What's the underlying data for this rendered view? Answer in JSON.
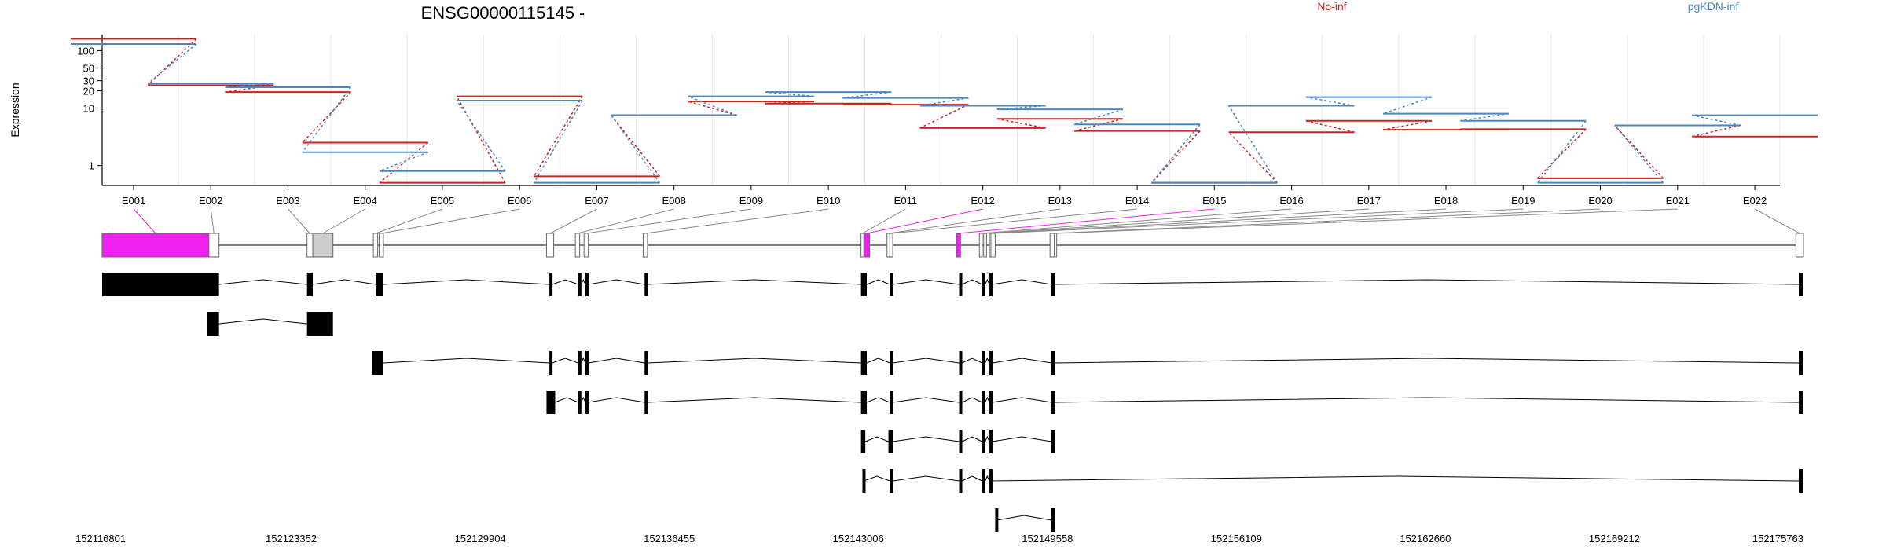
{
  "title": "ENSG00000115145 -",
  "legend": [
    {
      "name": "No-inf",
      "color": "#cc2222"
    },
    {
      "name": "pgKDN-inf",
      "color": "#4a86c0"
    }
  ],
  "colors": {
    "highlight": "#ee22ee",
    "exon_fill": "#cccccc",
    "transcript": "#000000",
    "grid": "#e8e8e8"
  },
  "chart_data": {
    "type": "line",
    "ylabel": "Expression",
    "yscale": "log",
    "ylim": [
      0.45,
      190
    ],
    "yticks": [
      1,
      10,
      20,
      30,
      50,
      100
    ],
    "yticklabels": [
      "1",
      "10",
      "20",
      "30",
      "50",
      "100"
    ],
    "categories": [
      "E001",
      "E002",
      "E003",
      "E004",
      "E005",
      "E006",
      "E007",
      "E008",
      "E009",
      "E010",
      "E011",
      "E012",
      "E013",
      "E014",
      "E015",
      "E016",
      "E017",
      "E018",
      "E019",
      "E020",
      "E021",
      "E022"
    ],
    "series": [
      {
        "name": "No-inf",
        "values": [
          160,
          25,
          19,
          2.5,
          0.5,
          16,
          0.65,
          7.5,
          13,
          12,
          11.5,
          4.5,
          6.5,
          4,
          0.5,
          3.8,
          6,
          4.2,
          4.3,
          0.6,
          5,
          3.2
        ]
      },
      {
        "name": "pgKDN-inf",
        "values": [
          130,
          27,
          23,
          1.7,
          0.8,
          13.5,
          0.5,
          7.5,
          16,
          19,
          15,
          11,
          9.5,
          5.2,
          0.5,
          11,
          15.5,
          8,
          6,
          0.5,
          5,
          7.5
        ]
      }
    ]
  },
  "genome": {
    "start": 152116801,
    "end": 152175763,
    "ticks": [
      "152116801",
      "152123352",
      "152129904",
      "152136455",
      "152143006",
      "152149558",
      "152156109",
      "152162660",
      "152169212",
      "152175763"
    ],
    "exons": [
      {
        "id": "E001",
        "start": 152116801,
        "end": 152120500
      },
      {
        "id": "E002",
        "start": 152120500,
        "end": 152120850
      },
      {
        "id": "E003",
        "start": 152123900,
        "end": 152124100
      },
      {
        "id": "E004",
        "start": 152124100,
        "end": 152124800
      },
      {
        "id": "E005",
        "start": 152126200,
        "end": 152126350
      },
      {
        "id": "E006",
        "start": 152126400,
        "end": 152126550
      },
      {
        "id": "E007",
        "start": 152132200,
        "end": 152132450
      },
      {
        "id": "E008",
        "start": 152133200,
        "end": 152133350
      },
      {
        "id": "E009",
        "start": 152133500,
        "end": 152133650
      },
      {
        "id": "E010",
        "start": 152135550,
        "end": 152135700
      },
      {
        "id": "E011",
        "start": 152143100,
        "end": 152143200
      },
      {
        "id": "E012",
        "start": 152143200,
        "end": 152143400
      },
      {
        "id": "E013",
        "start": 152144000,
        "end": 152144100
      },
      {
        "id": "E014",
        "start": 152144100,
        "end": 152144200
      },
      {
        "id": "E015",
        "start": 152146400,
        "end": 152146550
      },
      {
        "id": "E016",
        "start": 152147200,
        "end": 152147300
      },
      {
        "id": "E017",
        "start": 152147350,
        "end": 152147450
      },
      {
        "id": "E018",
        "start": 152147550,
        "end": 152147600
      },
      {
        "id": "E019",
        "start": 152147600,
        "end": 152147750
      },
      {
        "id": "E020",
        "start": 152149650,
        "end": 152149800
      },
      {
        "id": "E021",
        "start": 152149800,
        "end": 152149850
      },
      {
        "id": "E022",
        "start": 152175500,
        "end": 152175763
      }
    ],
    "highlighted": [
      "E001",
      "E012",
      "E015"
    ],
    "transcripts": [
      {
        "exons": [
          [
            152116801,
            152120850
          ],
          [
            152123900,
            152124100
          ],
          [
            152126300,
            152126550
          ],
          [
            152132300,
            152132400
          ],
          [
            152133300,
            152133400
          ],
          [
            152133550,
            152133650
          ],
          [
            152135600,
            152135700
          ],
          [
            152143100,
            152143300
          ],
          [
            152144100,
            152144200
          ],
          [
            152146500,
            152146600
          ],
          [
            152147300,
            152147400
          ],
          [
            152147550,
            152147650
          ],
          [
            152149700,
            152149800
          ],
          [
            152175600,
            152175763
          ]
        ]
      },
      {
        "exons": [
          [
            152120450,
            152120850
          ],
          [
            152123900,
            152124800
          ]
        ]
      },
      {
        "exons": [
          [
            152126150,
            152126550
          ],
          [
            152132300,
            152132400
          ],
          [
            152133300,
            152133400
          ],
          [
            152133550,
            152133650
          ],
          [
            152135600,
            152135700
          ],
          [
            152143100,
            152143300
          ],
          [
            152144100,
            152144200
          ],
          [
            152146500,
            152146600
          ],
          [
            152147300,
            152147400
          ],
          [
            152147550,
            152147650
          ],
          [
            152149700,
            152149800
          ],
          [
            152175600,
            152175763
          ]
        ]
      },
      {
        "exons": [
          [
            152132200,
            152132500
          ],
          [
            152133300,
            152133400
          ],
          [
            152133550,
            152133650
          ],
          [
            152135600,
            152135700
          ],
          [
            152143100,
            152143300
          ],
          [
            152144100,
            152144200
          ],
          [
            152146500,
            152146600
          ],
          [
            152147300,
            152147400
          ],
          [
            152147550,
            152147650
          ],
          [
            152149700,
            152149800
          ],
          [
            152175600,
            152175763
          ]
        ]
      },
      {
        "exons": [
          [
            152143100,
            152143250
          ],
          [
            152144050,
            152144200
          ],
          [
            152146500,
            152146600
          ],
          [
            152147300,
            152147400
          ],
          [
            152147550,
            152147650
          ],
          [
            152149700,
            152149800
          ]
        ]
      },
      {
        "exons": [
          [
            152143150,
            152143200
          ],
          [
            152144100,
            152144200
          ],
          [
            152146500,
            152146600
          ],
          [
            152147300,
            152147400
          ],
          [
            152147550,
            152147650
          ],
          [
            152175600,
            152175763
          ]
        ]
      },
      {
        "exons": [
          [
            152147750,
            152147800
          ],
          [
            152149700,
            152149800
          ]
        ]
      }
    ]
  }
}
